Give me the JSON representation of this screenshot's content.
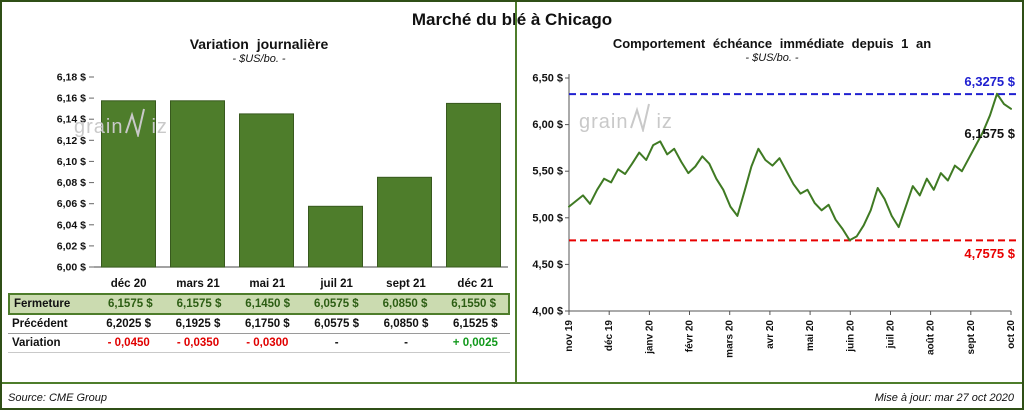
{
  "header": {
    "title": "Marché du blé à Chicago"
  },
  "watermark": {
    "pre": "grain",
    "post": "iz"
  },
  "left_table": {
    "columns": [
      "déc 20",
      "mars 21",
      "mai 21",
      "juil 21",
      "sept 21",
      "déc 21"
    ],
    "rows": [
      {
        "label": "Fermeture",
        "cells": [
          "6,1575  $",
          "6,1575  $",
          "6,1450  $",
          "6,0575  $",
          "6,0850  $",
          "6,1550  $"
        ]
      },
      {
        "label": "Précédent",
        "cells": [
          "6,2025  $",
          "6,1925  $",
          "6,1750  $",
          "6,0575  $",
          "6,0850  $",
          "6,1525  $"
        ]
      },
      {
        "label": "Variation",
        "cells": [
          "- 0,0450",
          "- 0,0350",
          "- 0,0300",
          "-",
          "-",
          "+ 0,0025"
        ]
      }
    ],
    "variation_colors": [
      "#e00000",
      "#e00000",
      "#e00000",
      "#111111",
      "#111111",
      "#12991c"
    ]
  },
  "footer": {
    "source": "Source: CME Group",
    "updated": "Mise à jour: mar 27 oct 2020"
  },
  "chart_data": [
    {
      "type": "bar",
      "title": "Variation journalière",
      "subtitle": "- $US/bo. -",
      "categories": [
        "déc 20",
        "mars 21",
        "mai 21",
        "juil 21",
        "sept 21",
        "déc 21"
      ],
      "values": [
        6.1575,
        6.1575,
        6.145,
        6.0575,
        6.085,
        6.155
      ],
      "ylim": [
        6.0,
        6.18
      ],
      "ytick_step": 0.02,
      "ytick_suffix": " $",
      "bar_color": "#4e7d2b",
      "grid": false,
      "legend": false
    },
    {
      "type": "line",
      "title": "Comportement échéance immédiate depuis 1 an",
      "subtitle": "- $US/bo. -",
      "x_labels": [
        "nov 19",
        "déc 19",
        "janv 20",
        "févr 20",
        "mars 20",
        "avr 20",
        "mai 20",
        "juin 20",
        "juil 20",
        "août 20",
        "sept 20",
        "oct 20"
      ],
      "values": [
        5.12,
        5.18,
        5.24,
        5.15,
        5.3,
        5.42,
        5.38,
        5.52,
        5.47,
        5.58,
        5.7,
        5.62,
        5.78,
        5.82,
        5.68,
        5.74,
        5.6,
        5.48,
        5.55,
        5.66,
        5.58,
        5.42,
        5.3,
        5.12,
        5.02,
        5.28,
        5.55,
        5.74,
        5.62,
        5.56,
        5.64,
        5.5,
        5.36,
        5.26,
        5.3,
        5.16,
        5.08,
        5.14,
        4.98,
        4.88,
        4.76,
        4.8,
        4.92,
        5.08,
        5.32,
        5.2,
        5.02,
        4.9,
        5.12,
        5.34,
        5.24,
        5.42,
        5.3,
        5.48,
        5.4,
        5.56,
        5.5,
        5.64,
        5.78,
        5.92,
        6.1,
        6.33,
        6.22,
        6.17
      ],
      "ylim": [
        4.0,
        6.5
      ],
      "ytick_step": 0.5,
      "ytick_suffix": " $",
      "line_color": "#3f7a23",
      "grid": false,
      "legend": false,
      "ref_lines": [
        {
          "value": 6.3275,
          "color": "#2020d0",
          "label": "6,3275 $"
        },
        {
          "value": 4.7575,
          "color": "#e80000",
          "label": "4,7575 $"
        }
      ],
      "last_label": "6,1575 $"
    }
  ]
}
